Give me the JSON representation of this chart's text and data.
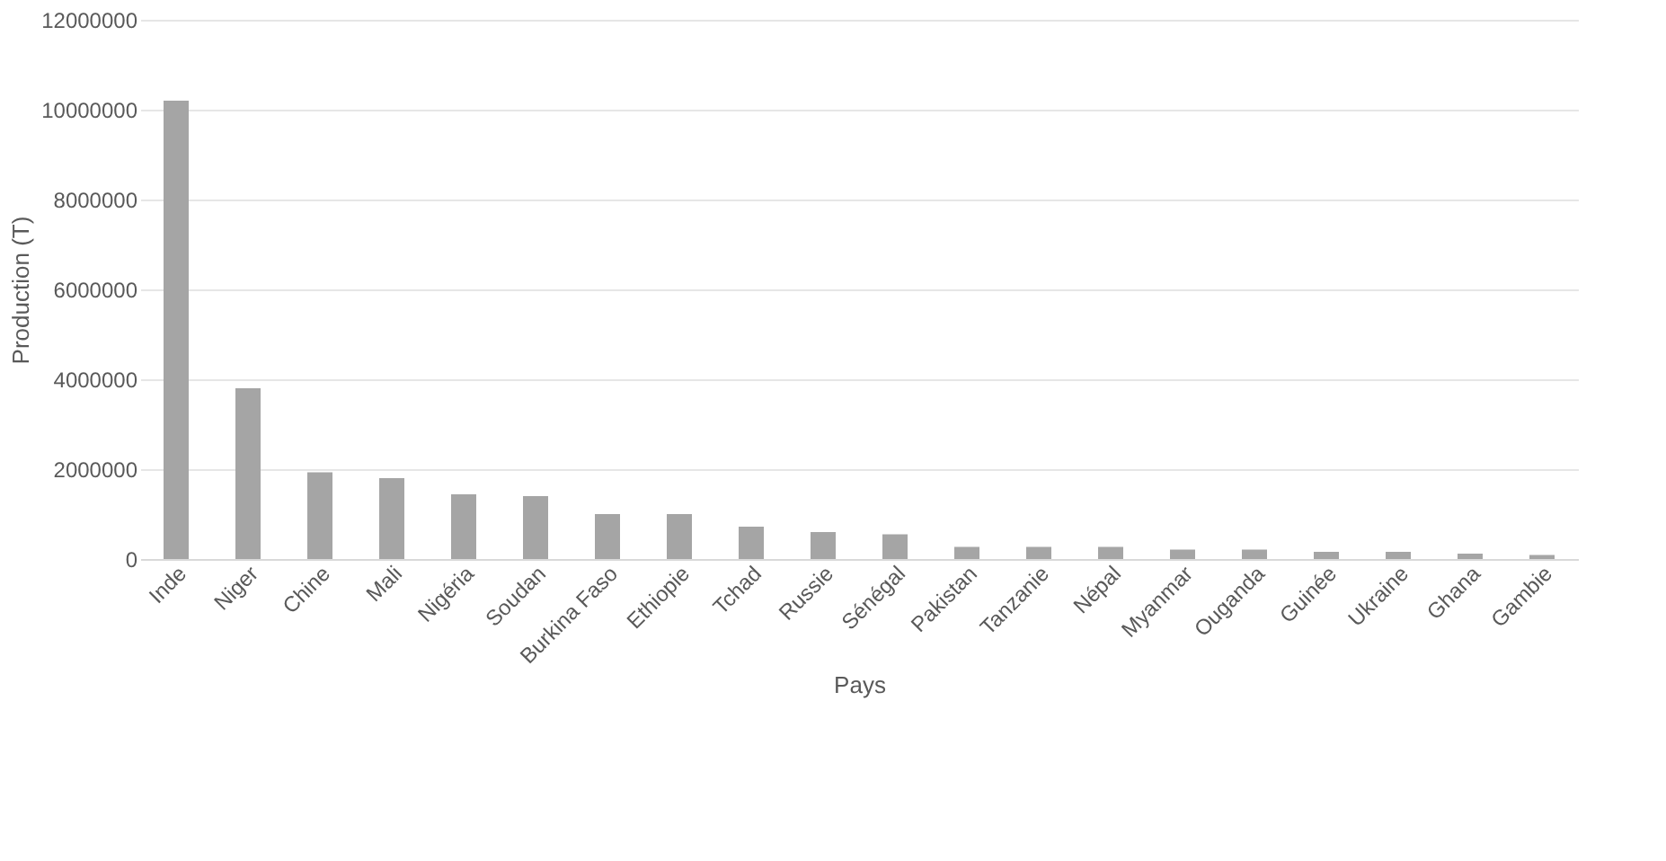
{
  "chart_data": {
    "type": "bar",
    "xlabel": "Pays",
    "ylabel": "Production (T)",
    "categories": [
      "Inde",
      "Niger",
      "Chine",
      "Mali",
      "Nigéria",
      "Soudan",
      "Burkina Faso",
      "Ethiopie",
      "Tchad",
      "Russie",
      "Sénégal",
      "Pakistan",
      "Tanzanie",
      "Népal",
      "Myanmar",
      "Ouganda",
      "Guinée",
      "Ukraine",
      "Ghana",
      "Gambie"
    ],
    "values": [
      10200000,
      3800000,
      1930000,
      1800000,
      1440000,
      1400000,
      1000000,
      1000000,
      720000,
      600000,
      550000,
      270000,
      270000,
      270000,
      210000,
      210000,
      160000,
      160000,
      120000,
      90000
    ],
    "color": "#a5a5a5",
    "ylim": [
      0,
      12000000
    ],
    "yticks": [
      0,
      2000000,
      4000000,
      6000000,
      8000000,
      10000000,
      12000000
    ],
    "grid": "y"
  }
}
